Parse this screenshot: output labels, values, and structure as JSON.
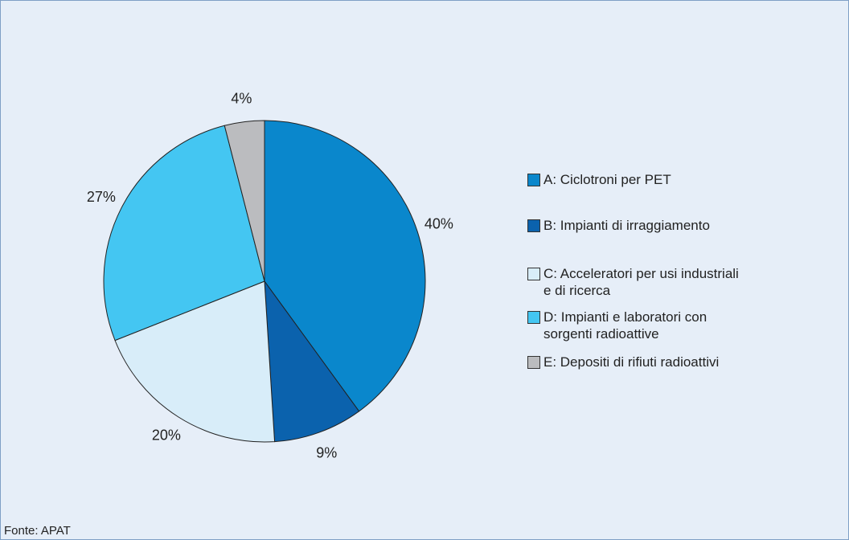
{
  "chart_data": {
    "type": "pie",
    "categories": [
      "A: Ciclotroni per PET",
      "B: Impianti di irraggiamento",
      "C: Acceleratori per usi industriali\ne di ricerca",
      "D: Impianti e laboratori con\nsorgenti radioattive",
      "E: Depositi di rifiuti radioattivi"
    ],
    "values": [
      40,
      9,
      20,
      27,
      4
    ],
    "value_labels": [
      "40%",
      "9%",
      "20%",
      "27%",
      "4%"
    ],
    "colors": [
      "#0a87cc",
      "#0b62ad",
      "#d8edf9",
      "#44c6f2",
      "#bbbcbf"
    ],
    "legend": "right",
    "source": "Fonte: APAT"
  }
}
